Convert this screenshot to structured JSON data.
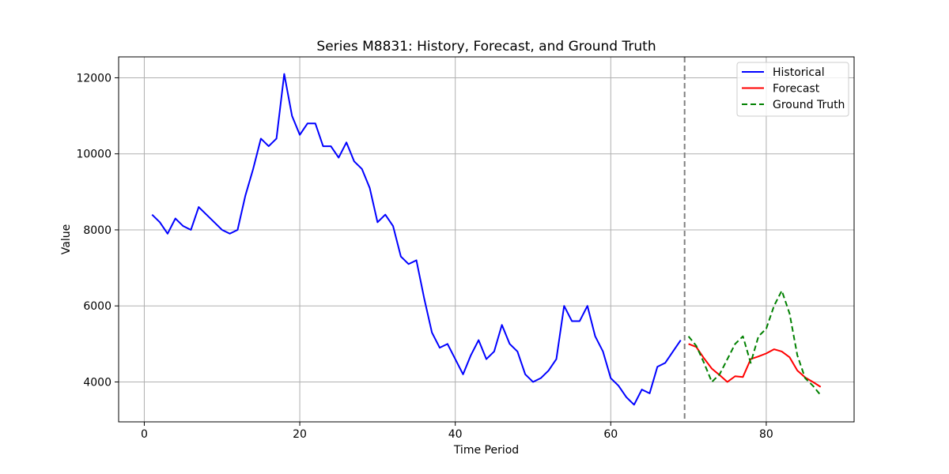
{
  "chart_data": {
    "type": "line",
    "title": "Series M8831: History, Forecast, and Ground Truth",
    "xlabel": "Time Period",
    "ylabel": "Value",
    "xlim": [
      -3.3,
      91.3
    ],
    "ylim": [
      2950,
      12550
    ],
    "xticks": [
      0,
      20,
      40,
      60,
      80
    ],
    "yticks": [
      4000,
      6000,
      8000,
      10000,
      12000
    ],
    "grid": true,
    "legend_position": "top-right",
    "forecast_start_marker": 69.5,
    "colors": {
      "historical": "#0000ff",
      "forecast": "#ff0000",
      "ground_truth": "#008000",
      "divider": "#808080"
    },
    "series": [
      {
        "name": "Historical",
        "style": "solid",
        "x": [
          1,
          2,
          3,
          4,
          5,
          6,
          7,
          8,
          9,
          10,
          11,
          12,
          13,
          14,
          15,
          16,
          17,
          18,
          19,
          20,
          21,
          22,
          23,
          24,
          25,
          26,
          27,
          28,
          29,
          30,
          31,
          32,
          33,
          34,
          35,
          36,
          37,
          38,
          39,
          40,
          41,
          42,
          43,
          44,
          45,
          46,
          47,
          48,
          49,
          50,
          51,
          52,
          53,
          54,
          55,
          56,
          57,
          58,
          59,
          60,
          61,
          62,
          63,
          64,
          65,
          66,
          67,
          68,
          69,
          70
        ],
        "y": [
          8400,
          8200,
          7900,
          8300,
          8100,
          8000,
          8600,
          8400,
          8200,
          8000,
          7900,
          8000,
          8900,
          9600,
          10400,
          10200,
          10400,
          12100,
          11000,
          10500,
          10800,
          10800,
          10200,
          10200,
          9900,
          10300,
          9800,
          9600,
          9100,
          8200,
          8400,
          8100,
          7300,
          7100,
          7200,
          6200,
          5300,
          4900,
          5000,
          4600,
          4200,
          4700,
          5100,
          4600,
          4800,
          5500,
          5000,
          4800,
          4200,
          4000,
          4100,
          4300,
          4600,
          6000,
          5600,
          5600,
          6000,
          5200,
          4800,
          4100,
          3900,
          3600,
          3400,
          3800,
          3700,
          4400,
          4500,
          4800,
          5100,
          null
        ]
      },
      {
        "name": "Forecast",
        "style": "solid",
        "x": [
          70,
          71,
          72,
          73,
          74,
          75,
          76,
          77,
          78,
          79,
          80,
          81,
          82,
          83,
          84,
          85,
          86,
          87
        ],
        "y": [
          5000,
          4920,
          4620,
          4350,
          4180,
          4000,
          4150,
          4130,
          4600,
          4670,
          4750,
          4860,
          4800,
          4650,
          4300,
          4120,
          4000,
          3870
        ]
      },
      {
        "name": "Ground Truth",
        "style": "dashed",
        "x": [
          70,
          71,
          72,
          73,
          74,
          75,
          76,
          77,
          78,
          79,
          80,
          81,
          82,
          83,
          84,
          85,
          86,
          87
        ],
        "y": [
          5200,
          4950,
          4500,
          4000,
          4200,
          4600,
          5000,
          5200,
          4500,
          5200,
          5400,
          6000,
          6400,
          5800,
          4700,
          4100,
          3900,
          3650
        ]
      }
    ]
  }
}
